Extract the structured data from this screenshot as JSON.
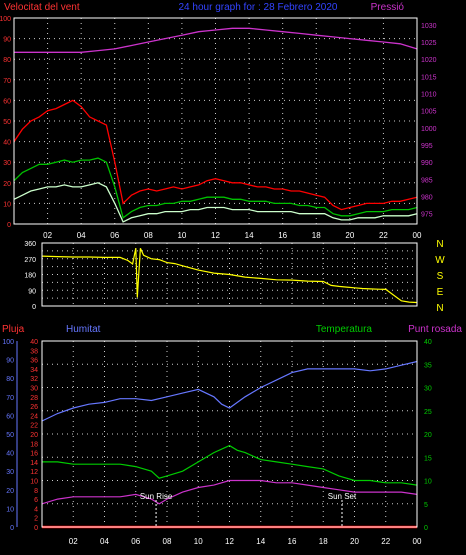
{
  "header": {
    "left_title": "Velocitat del vent",
    "center_title": "24 hour graph for : 28 Febrero 2020",
    "right_title": "Pressió"
  },
  "colors": {
    "background": "#000000",
    "frame": "#ffffff",
    "grid": "#ffffff",
    "gust": "#ff0000",
    "wind": "#00c000",
    "wind_min": "#ccffcc",
    "pressure": "#cc33cc",
    "direction": "#ffff00",
    "humidity": "#6677ff",
    "temperature": "#00cc00",
    "dewpoint": "#cc33cc",
    "rain": "#ff0000",
    "sun_marker": "#ffffff",
    "axis_red": "#ff3333",
    "axis_magenta": "#cc33cc",
    "axis_yellow": "#ffff00",
    "axis_blue": "#6677ff",
    "axis_green": "#00cc00"
  },
  "chart_data": [
    {
      "type": "line",
      "id": "wind-pressure",
      "title": "24 hour graph for : 28 Febrero 2020",
      "x_tick_labels": [
        "02",
        "04",
        "06",
        "08",
        "10",
        "12",
        "14",
        "16",
        "18",
        "20",
        "22",
        "00"
      ],
      "xlim": [
        0,
        24
      ],
      "left_axis": {
        "label": "Velocitat del vent",
        "ylim": [
          0,
          100
        ],
        "ticks": [
          0,
          10,
          20,
          30,
          40,
          50,
          60,
          70,
          80,
          90,
          100
        ]
      },
      "right_axis": {
        "label": "Pressió",
        "ylim": [
          972,
          1032
        ],
        "ticks": [
          975,
          980,
          985,
          990,
          995,
          1000,
          1005,
          1010,
          1015,
          1020,
          1025,
          1030
        ]
      },
      "grid": true,
      "series": [
        {
          "axis": "left",
          "color_key": "gust",
          "x": [
            0,
            0.5,
            1,
            1.5,
            2,
            2.5,
            3,
            3.5,
            4,
            4.5,
            5,
            5.5,
            6,
            6.5,
            7,
            7.5,
            8,
            8.5,
            9,
            9.5,
            10,
            10.5,
            11,
            11.5,
            12,
            12.5,
            13,
            13.5,
            14,
            14.5,
            15,
            15.5,
            16,
            16.5,
            17,
            17.5,
            18,
            18.5,
            19,
            19.5,
            20,
            20.5,
            21,
            21.5,
            22,
            22.5,
            23,
            23.5,
            24
          ],
          "values": [
            40,
            46,
            50,
            52,
            55,
            56,
            58,
            60,
            57,
            52,
            50,
            48,
            30,
            10,
            14,
            16,
            17,
            16,
            17,
            18,
            17,
            18,
            19,
            21,
            22,
            21,
            20,
            20,
            19,
            18,
            18,
            17,
            17,
            16,
            16,
            15,
            14,
            13,
            9,
            7,
            8,
            9,
            10,
            10,
            10,
            11,
            11,
            12,
            13
          ]
        },
        {
          "axis": "left",
          "color_key": "wind",
          "x": [
            0,
            0.5,
            1,
            1.5,
            2,
            2.5,
            3,
            3.5,
            4,
            4.5,
            5,
            5.5,
            6,
            6.5,
            7,
            7.5,
            8,
            8.5,
            9,
            9.5,
            10,
            10.5,
            11,
            11.5,
            12,
            12.5,
            13,
            13.5,
            14,
            14.5,
            15,
            15.5,
            16,
            16.5,
            17,
            17.5,
            18,
            18.5,
            19,
            19.5,
            20,
            20.5,
            21,
            21.5,
            22,
            22.5,
            23,
            23.5,
            24
          ],
          "values": [
            21,
            25,
            27,
            29,
            29,
            30,
            31,
            30,
            31,
            31,
            32,
            30,
            18,
            3,
            6,
            8,
            9,
            9,
            10,
            10,
            11,
            11,
            12,
            13,
            13,
            13,
            12,
            12,
            11,
            11,
            11,
            10,
            10,
            10,
            9,
            9,
            8,
            8,
            5,
            4,
            4,
            5,
            6,
            6,
            6,
            7,
            7,
            7,
            8
          ]
        },
        {
          "axis": "left",
          "color_key": "wind_min",
          "x": [
            0,
            0.5,
            1,
            1.5,
            2,
            2.5,
            3,
            3.5,
            4,
            4.5,
            5,
            5.5,
            6,
            6.5,
            7,
            7.5,
            8,
            8.5,
            9,
            9.5,
            10,
            10.5,
            11,
            11.5,
            12,
            12.5,
            13,
            13.5,
            14,
            14.5,
            15,
            15.5,
            16,
            16.5,
            17,
            17.5,
            18,
            18.5,
            19,
            19.5,
            20,
            20.5,
            21,
            21.5,
            22,
            22.5,
            23,
            23.5,
            24
          ],
          "values": [
            12,
            14,
            16,
            17,
            18,
            18,
            19,
            18,
            18,
            19,
            20,
            18,
            10,
            1,
            3,
            4,
            5,
            5,
            6,
            6,
            6,
            7,
            7,
            8,
            8,
            8,
            7,
            7,
            7,
            6,
            6,
            6,
            6,
            6,
            5,
            5,
            5,
            5,
            3,
            2,
            2,
            3,
            3,
            3,
            4,
            4,
            4,
            4,
            5
          ]
        },
        {
          "axis": "right",
          "color_key": "pressure",
          "x": [
            0,
            1,
            2,
            3,
            4,
            5,
            6,
            7,
            8,
            9,
            10,
            11,
            12,
            13,
            14,
            15,
            16,
            17,
            18,
            19,
            20,
            21,
            22,
            23,
            24
          ],
          "values": [
            1022,
            1022,
            1022,
            1022,
            1022,
            1022.5,
            1023,
            1024,
            1025,
            1026,
            1027,
            1028,
            1028.5,
            1029,
            1029,
            1028.5,
            1028,
            1027.5,
            1027,
            1026.5,
            1026,
            1025.5,
            1025,
            1024.5,
            1023
          ]
        }
      ]
    },
    {
      "type": "line",
      "id": "wind-direction",
      "x_tick_labels": [],
      "xlim": [
        0,
        24
      ],
      "left_axis": {
        "ylim": [
          0,
          360
        ],
        "ticks": [
          0,
          45,
          90,
          135,
          180,
          225,
          270,
          315,
          360
        ],
        "tick_labels": [
          "0",
          "",
          "90",
          "",
          "180",
          "",
          "270",
          "",
          "360"
        ]
      },
      "right_axis": {
        "labels": [
          "N",
          "W",
          "S",
          "E",
          "N"
        ]
      },
      "grid": true,
      "series": [
        {
          "axis": "left",
          "color_key": "direction",
          "x": [
            0,
            1,
            2,
            3,
            4,
            5,
            5.5,
            5.8,
            6,
            6.1,
            6.3,
            6.5,
            7,
            7.5,
            8,
            8.5,
            9,
            10,
            11,
            12,
            13,
            14,
            15,
            16,
            17,
            18,
            18.5,
            19,
            19.5,
            20,
            20.5,
            21,
            21.5,
            22,
            22.5,
            23,
            23.5,
            24
          ],
          "values": [
            285,
            282,
            280,
            280,
            278,
            278,
            260,
            240,
            330,
            50,
            330,
            290,
            270,
            265,
            248,
            242,
            230,
            205,
            188,
            180,
            165,
            158,
            150,
            148,
            142,
            140,
            118,
            112,
            108,
            104,
            100,
            98,
            96,
            95,
            62,
            30,
            22,
            20
          ]
        }
      ]
    },
    {
      "type": "line",
      "id": "humidity-temperature",
      "x_tick_labels": [
        "02",
        "04",
        "06",
        "08",
        "10",
        "12",
        "14",
        "16",
        "18",
        "20",
        "22",
        "00"
      ],
      "xlim": [
        0,
        24
      ],
      "left_axis_outer": {
        "label": "Pluja",
        "ylim": [
          0,
          40
        ],
        "ticks": [
          0,
          2,
          4,
          6,
          8,
          10,
          12,
          14,
          16,
          18,
          20,
          22,
          24,
          26,
          28,
          30,
          32,
          34,
          36,
          38,
          40
        ]
      },
      "left_axis_inner": {
        "label": "Humitat",
        "ylim": [
          0,
          100
        ],
        "ticks": [
          0,
          10,
          20,
          30,
          40,
          50,
          60,
          70,
          80,
          90,
          100
        ]
      },
      "right_axis": {
        "label": "Temperatura",
        "ylim": [
          0,
          40
        ],
        "ticks": [
          0,
          5,
          10,
          15,
          20,
          25,
          30,
          35,
          40
        ]
      },
      "right_label_2": "Punt rosada",
      "grid": true,
      "annotations": [
        {
          "text": "Sun Rise",
          "x": 7.3
        },
        {
          "text": "Sun Set",
          "x": 19.2
        }
      ],
      "series": [
        {
          "axis": "inner",
          "color_key": "humidity",
          "x": [
            0,
            1,
            2,
            3,
            4,
            5,
            6,
            7,
            8,
            9,
            10,
            11,
            11.5,
            12,
            12.5,
            13,
            14,
            15,
            16,
            17,
            18,
            19,
            20,
            21,
            22,
            23,
            24
          ],
          "values": [
            57,
            61,
            64,
            66,
            67,
            69,
            69,
            68,
            70,
            72,
            74,
            70,
            66,
            64,
            67,
            70,
            75,
            79,
            83,
            85,
            85,
            85,
            85,
            84,
            85,
            87,
            89
          ]
        },
        {
          "axis": "right",
          "color_key": "temperature",
          "x": [
            0,
            1,
            2,
            3,
            4,
            5,
            6,
            7,
            7.5,
            8,
            9,
            10,
            11,
            12,
            12.5,
            13,
            14,
            15,
            16,
            17,
            18,
            19,
            20,
            21,
            22,
            23,
            24
          ],
          "values": [
            14,
            14,
            13.5,
            13.5,
            13.5,
            13.5,
            13,
            12,
            10.5,
            11,
            12,
            14,
            16,
            17.5,
            16.5,
            16,
            14.5,
            14,
            13.5,
            13,
            12.5,
            11,
            10,
            10,
            9.5,
            9.5,
            9
          ]
        },
        {
          "axis": "right",
          "color_key": "dewpoint",
          "x": [
            0,
            1,
            2,
            3,
            4,
            5,
            6,
            7,
            7.5,
            8,
            9,
            10,
            11,
            12,
            13,
            14,
            15,
            16,
            17,
            18,
            19,
            20,
            21,
            22,
            23,
            24
          ],
          "values": [
            5,
            6,
            6.5,
            6.5,
            6.5,
            6.5,
            7,
            6,
            5,
            6,
            7.5,
            8.5,
            9,
            10,
            10,
            10,
            9.5,
            9.5,
            9,
            8.5,
            8,
            7.5,
            7.5,
            7.5,
            7.5,
            7
          ]
        },
        {
          "axis": "outer",
          "color_key": "rain",
          "x": [
            0,
            24
          ],
          "values": [
            0,
            0
          ]
        }
      ]
    }
  ]
}
